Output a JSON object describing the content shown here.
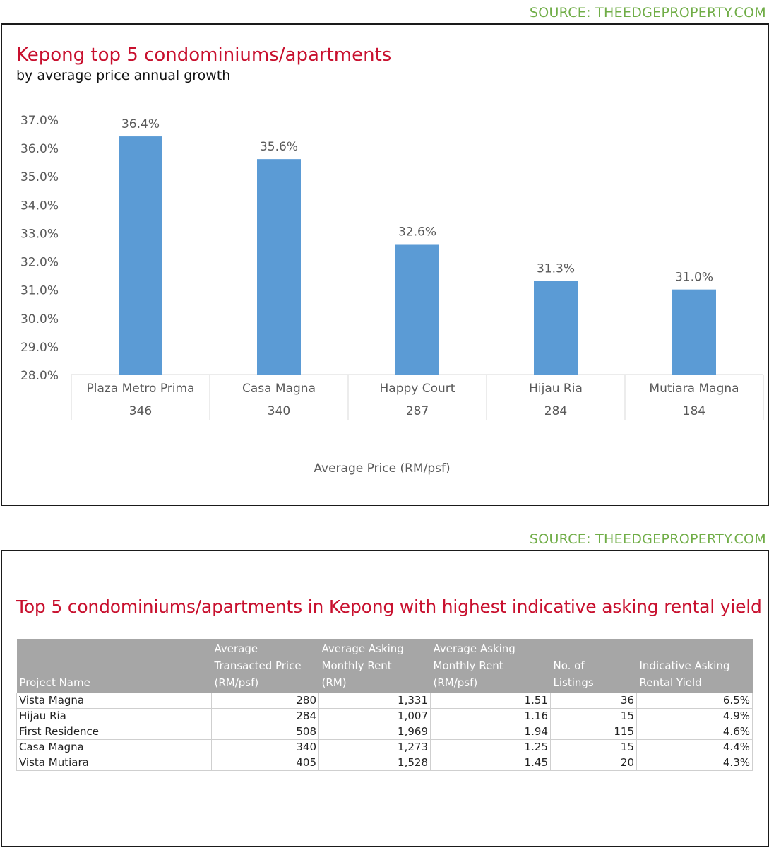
{
  "colors": {
    "source": "#70ad47",
    "title": "#c8102e",
    "bar": "#5b9bd5",
    "table_header": "#a6a6a6",
    "axis_text": "#595959"
  },
  "source_top": "SOURCE: THEEDGEPROPERTY.COM",
  "source_bottom": "SOURCE: THEEDGEPROPERTY.COM",
  "chart_data": {
    "type": "bar",
    "title": "Kepong top 5 condominiums/apartments",
    "subtitle": "by average price annual growth",
    "categories": [
      "Plaza Metro Prima",
      "Casa Magna",
      "Happy Court",
      "Hijau Ria",
      "Mutiara Magna"
    ],
    "category_sublabels": [
      "346",
      "340",
      "287",
      "284",
      "184"
    ],
    "values": [
      36.4,
      35.6,
      32.6,
      31.3,
      31.0
    ],
    "data_labels": [
      "36.4%",
      "35.6%",
      "32.6%",
      "31.3%",
      "31.0%"
    ],
    "xlabel": "Average Price (RM/psf)",
    "ylabel": "",
    "ylim": [
      28,
      37
    ],
    "yticks": [
      "37.0%",
      "36.0%",
      "35.0%",
      "34.0%",
      "33.0%",
      "32.0%",
      "31.0%",
      "30.0%",
      "29.0%",
      "28.0%"
    ],
    "grid": true,
    "legend": "none"
  },
  "table": {
    "title": "Top 5 condominiums/apartments in Kepong with highest indicative asking rental yield",
    "headers": [
      [
        "Project Name"
      ],
      [
        "Average",
        "Transacted Price",
        "(RM/psf)"
      ],
      [
        "Average Asking",
        "Monthly Rent",
        "(RM)"
      ],
      [
        "Average Asking",
        "Monthly Rent",
        "(RM/psf)"
      ],
      [
        "No. of",
        "Listings"
      ],
      [
        "Indicative Asking",
        "Rental Yield"
      ]
    ],
    "rows": [
      [
        "Vista Magna",
        "280",
        "1,331",
        "1.51",
        "36",
        "6.5%"
      ],
      [
        "Hijau Ria",
        "284",
        "1,007",
        "1.16",
        "15",
        "4.9%"
      ],
      [
        "First Residence",
        "508",
        "1,969",
        "1.94",
        "115",
        "4.6%"
      ],
      [
        "Casa Magna",
        "340",
        "1,273",
        "1.25",
        "15",
        "4.4%"
      ],
      [
        "Vista Mutiara",
        "405",
        "1,528",
        "1.45",
        "20",
        "4.3%"
      ]
    ]
  }
}
